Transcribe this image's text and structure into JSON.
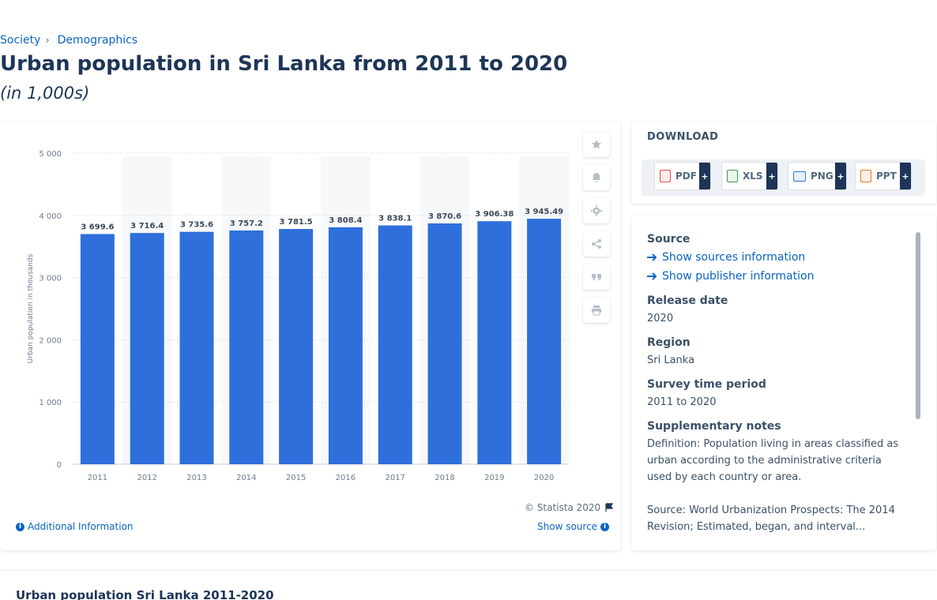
{
  "breadcrumb": {
    "items": [
      "Society",
      "Demographics"
    ]
  },
  "page": {
    "title": "Urban population in Sri Lanka from 2011 to 2020",
    "subtitle": "(in 1,000s)"
  },
  "chart_data": {
    "type": "bar",
    "categories": [
      "2011",
      "2012",
      "2013",
      "2014",
      "2015",
      "2016",
      "2017",
      "2018",
      "2019",
      "2020"
    ],
    "values": [
      3699.6,
      3716.4,
      3735.6,
      3757.2,
      3781.5,
      3808.4,
      3838.1,
      3870.6,
      3906.38,
      3945.49
    ],
    "value_labels": [
      "3 699.6",
      "3 716.4",
      "3 735.6",
      "3 757.2",
      "3 781.5",
      "3 808.4",
      "3 838.1",
      "3 870.6",
      "3 906.38",
      "3 945.49"
    ],
    "ylabel": "Urban population in thousands",
    "ylim": [
      0,
      5000
    ],
    "yticks": [
      0,
      1000,
      2000,
      3000,
      4000,
      5000
    ],
    "ytick_labels": [
      "0",
      "1 000",
      "2 000",
      "3 000",
      "4 000",
      "5 000"
    ],
    "grid": true,
    "bar_color": "#2f6fdc"
  },
  "chart_footer": {
    "copyright": "© Statista 2020",
    "additional_info": "Additional Information",
    "show_source": "Show source"
  },
  "tools": [
    "star-icon",
    "bell-icon",
    "gear-icon",
    "share-icon",
    "quote-icon",
    "print-icon"
  ],
  "download": {
    "title": "DOWNLOAD",
    "buttons": [
      {
        "label": "PDF",
        "color": "#d9534f"
      },
      {
        "label": "XLS",
        "color": "#3c9a4a"
      },
      {
        "label": "PNG",
        "color": "#2f6fdc"
      },
      {
        "label": "PPT",
        "color": "#e8792a"
      }
    ],
    "plus": "+"
  },
  "source": {
    "source_heading": "Source",
    "show_sources": "Show sources information",
    "show_publisher": "Show publisher information",
    "release_heading": "Release date",
    "release_value": "2020",
    "region_heading": "Region",
    "region_value": "Sri Lanka",
    "survey_heading": "Survey time period",
    "survey_value": "2011 to 2020",
    "notes_heading": "Supplementary notes",
    "notes_definition": "Definition: Population living in areas classified as urban according to the administrative criteria used by each country or area.",
    "notes_source": "Source: World Urbanization Prospects: The 2014 Revision; Estimated, began, and interval..."
  },
  "bottom": {
    "title": "Urban population Sri Lanka 2011-2020"
  }
}
